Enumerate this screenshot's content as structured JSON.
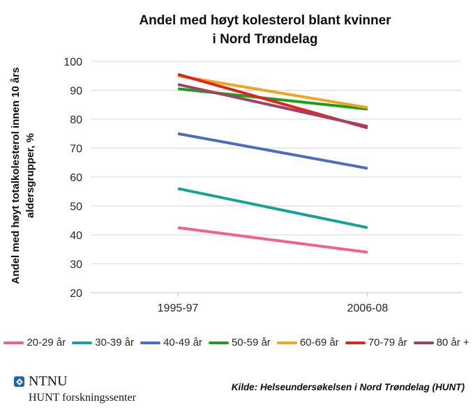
{
  "title": {
    "line1": "Andel med høyt kolesterol blant kvinner",
    "line2": "i Nord Trøndelag"
  },
  "y_axis": {
    "label_line1": "Andel med høyt totalkolesterol innen 10 års",
    "label_line2": "aldersgrupper, %",
    "ticks": [
      100,
      90,
      80,
      70,
      60,
      50,
      40,
      30,
      20
    ]
  },
  "x_axis": {
    "categories": [
      "1995-97",
      "2006-08"
    ]
  },
  "chart_data": {
    "type": "line",
    "title": "Andel med høyt kolesterol blant kvinner i Nord Trøndelag",
    "xlabel": "",
    "ylabel": "Andel med høyt totalkolesterol innen 10 års aldersgrupper, %",
    "categories": [
      "1995-97",
      "2006-08"
    ],
    "series": [
      {
        "name": "20-29 år",
        "color": "#F2618C",
        "values": [
          42.5,
          34
        ]
      },
      {
        "name": "30-39 år",
        "color": "#16A29A",
        "values": [
          56,
          42.5
        ]
      },
      {
        "name": "40-49 år",
        "color": "#4C6CBE",
        "values": [
          75,
          63
        ]
      },
      {
        "name": "50-59 år",
        "color": "#1CA01C",
        "values": [
          90.5,
          83.5
        ]
      },
      {
        "name": "60-69 år",
        "color": "#EFA51F",
        "values": [
          95,
          84
        ]
      },
      {
        "name": "70-79 år",
        "color": "#E4221D",
        "values": [
          95.5,
          77
        ]
      },
      {
        "name": "80 år +",
        "color": "#A04168",
        "values": [
          92,
          77.5
        ]
      }
    ],
    "ylim": [
      20,
      100
    ],
    "grid": true,
    "legend_position": "bottom"
  },
  "colors": {
    "gridline": "#D9D9D9",
    "axis_line": "#C3C3C3",
    "logo_blue": "#2062AE"
  },
  "footer": {
    "logo_name": "NTNU",
    "logo_subtext": "HUNT forskningssenter",
    "source": "Kilde: Helseundersøkelsen i Nord Trøndelag (HUNT)"
  }
}
